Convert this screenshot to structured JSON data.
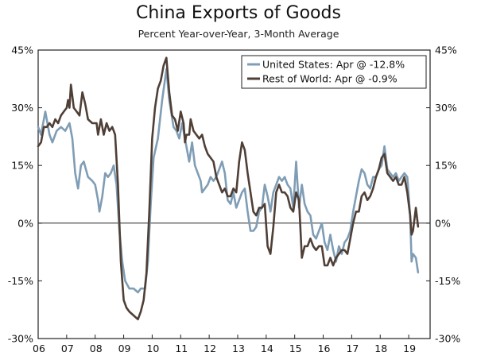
{
  "chart_data": {
    "type": "line",
    "title": "China Exports of Goods",
    "subtitle": "Percent Year-over-Year, 3-Month Average",
    "ylim": [
      -30,
      45
    ],
    "yticks": [
      -30,
      -15,
      0,
      15,
      30,
      45
    ],
    "ytick_labels": [
      "-30%",
      "-15%",
      "0%",
      "15%",
      "30%",
      "45%"
    ],
    "xlim": [
      2006.0,
      2019.75
    ],
    "xticks": [
      2006,
      2007,
      2008,
      2009,
      2010,
      2011,
      2012,
      2013,
      2014,
      2015,
      2016,
      2017,
      2018,
      2019
    ],
    "xtick_labels": [
      "06",
      "07",
      "08",
      "09",
      "10",
      "11",
      "12",
      "13",
      "14",
      "15",
      "16",
      "17",
      "18",
      "19"
    ],
    "grid": false,
    "legend_position": "top-right",
    "series": [
      {
        "name": "United States: Apr @ -12.8%",
        "color": "#7f9db5",
        "points": [
          [
            2006.0,
            25
          ],
          [
            2006.1,
            23
          ],
          [
            2006.25,
            29
          ],
          [
            2006.4,
            23
          ],
          [
            2006.5,
            21
          ],
          [
            2006.65,
            24
          ],
          [
            2006.8,
            25
          ],
          [
            2006.95,
            24
          ],
          [
            2007.1,
            26
          ],
          [
            2007.2,
            22
          ],
          [
            2007.3,
            13
          ],
          [
            2007.4,
            9
          ],
          [
            2007.5,
            15
          ],
          [
            2007.6,
            16
          ],
          [
            2007.75,
            12
          ],
          [
            2007.9,
            11
          ],
          [
            2008.0,
            10
          ],
          [
            2008.1,
            6
          ],
          [
            2008.15,
            3
          ],
          [
            2008.25,
            7
          ],
          [
            2008.35,
            13
          ],
          [
            2008.45,
            12
          ],
          [
            2008.55,
            13
          ],
          [
            2008.65,
            15
          ],
          [
            2008.75,
            10
          ],
          [
            2008.85,
            -2
          ],
          [
            2008.95,
            -10
          ],
          [
            2009.05,
            -15
          ],
          [
            2009.2,
            -17
          ],
          [
            2009.35,
            -17
          ],
          [
            2009.5,
            -18
          ],
          [
            2009.6,
            -17
          ],
          [
            2009.75,
            -17
          ],
          [
            2009.85,
            -10
          ],
          [
            2009.95,
            5
          ],
          [
            2010.05,
            17
          ],
          [
            2010.2,
            22
          ],
          [
            2010.35,
            32
          ],
          [
            2010.5,
            40
          ],
          [
            2010.6,
            32
          ],
          [
            2010.75,
            25
          ],
          [
            2010.85,
            24
          ],
          [
            2010.95,
            22
          ],
          [
            2011.05,
            26
          ],
          [
            2011.2,
            20
          ],
          [
            2011.3,
            16
          ],
          [
            2011.4,
            21
          ],
          [
            2011.5,
            15
          ],
          [
            2011.6,
            13
          ],
          [
            2011.7,
            11
          ],
          [
            2011.75,
            8
          ],
          [
            2011.85,
            9
          ],
          [
            2011.95,
            10
          ],
          [
            2012.05,
            12
          ],
          [
            2012.15,
            11
          ],
          [
            2012.25,
            12
          ],
          [
            2012.35,
            14
          ],
          [
            2012.45,
            16
          ],
          [
            2012.55,
            13
          ],
          [
            2012.65,
            6
          ],
          [
            2012.75,
            5
          ],
          [
            2012.85,
            8
          ],
          [
            2012.95,
            4
          ],
          [
            2013.05,
            6
          ],
          [
            2013.15,
            8
          ],
          [
            2013.25,
            9
          ],
          [
            2013.35,
            3
          ],
          [
            2013.45,
            -2
          ],
          [
            2013.55,
            -2
          ],
          [
            2013.65,
            -1
          ],
          [
            2013.75,
            3
          ],
          [
            2013.85,
            4
          ],
          [
            2013.95,
            10
          ],
          [
            2014.05,
            7
          ],
          [
            2014.15,
            3
          ],
          [
            2014.25,
            8
          ],
          [
            2014.35,
            10
          ],
          [
            2014.45,
            12
          ],
          [
            2014.55,
            11
          ],
          [
            2014.65,
            12
          ],
          [
            2014.75,
            10
          ],
          [
            2014.85,
            9
          ],
          [
            2014.95,
            4
          ],
          [
            2015.05,
            16
          ],
          [
            2015.15,
            4
          ],
          [
            2015.25,
            10
          ],
          [
            2015.35,
            5
          ],
          [
            2015.45,
            3
          ],
          [
            2015.55,
            2
          ],
          [
            2015.65,
            -3
          ],
          [
            2015.75,
            -4
          ],
          [
            2015.85,
            -2
          ],
          [
            2015.95,
            0
          ],
          [
            2016.05,
            -5
          ],
          [
            2016.15,
            -7
          ],
          [
            2016.25,
            -3
          ],
          [
            2016.35,
            -7
          ],
          [
            2016.45,
            -10
          ],
          [
            2016.55,
            -6
          ],
          [
            2016.65,
            -8
          ],
          [
            2016.75,
            -5
          ],
          [
            2016.85,
            -4
          ],
          [
            2016.95,
            -2
          ],
          [
            2017.05,
            3
          ],
          [
            2017.15,
            7
          ],
          [
            2017.25,
            11
          ],
          [
            2017.35,
            14
          ],
          [
            2017.45,
            13
          ],
          [
            2017.55,
            10
          ],
          [
            2017.65,
            9
          ],
          [
            2017.75,
            12
          ],
          [
            2017.85,
            12
          ],
          [
            2017.95,
            14
          ],
          [
            2018.05,
            15
          ],
          [
            2018.15,
            20
          ],
          [
            2018.25,
            14
          ],
          [
            2018.35,
            13
          ],
          [
            2018.45,
            12
          ],
          [
            2018.55,
            13
          ],
          [
            2018.65,
            11
          ],
          [
            2018.75,
            12
          ],
          [
            2018.85,
            13
          ],
          [
            2018.95,
            12
          ],
          [
            2019.05,
            2
          ],
          [
            2019.1,
            -10
          ],
          [
            2019.15,
            -8
          ],
          [
            2019.25,
            -9
          ],
          [
            2019.33,
            -12.8
          ]
        ]
      },
      {
        "name": "Rest of World: Apr @ -0.9%",
        "color": "#4f3f36",
        "points": [
          [
            2006.0,
            20
          ],
          [
            2006.1,
            21
          ],
          [
            2006.2,
            25
          ],
          [
            2006.3,
            25
          ],
          [
            2006.4,
            26
          ],
          [
            2006.5,
            25
          ],
          [
            2006.6,
            27
          ],
          [
            2006.7,
            26
          ],
          [
            2006.8,
            28
          ],
          [
            2006.9,
            29
          ],
          [
            2007.0,
            30
          ],
          [
            2007.05,
            32
          ],
          [
            2007.1,
            30
          ],
          [
            2007.15,
            36
          ],
          [
            2007.25,
            30
          ],
          [
            2007.35,
            29
          ],
          [
            2007.45,
            28
          ],
          [
            2007.55,
            34
          ],
          [
            2007.65,
            31
          ],
          [
            2007.75,
            27
          ],
          [
            2007.9,
            26
          ],
          [
            2008.05,
            26
          ],
          [
            2008.1,
            23
          ],
          [
            2008.2,
            27
          ],
          [
            2008.3,
            23
          ],
          [
            2008.4,
            26
          ],
          [
            2008.5,
            24
          ],
          [
            2008.6,
            25
          ],
          [
            2008.7,
            23
          ],
          [
            2008.8,
            10
          ],
          [
            2008.9,
            -10
          ],
          [
            2009.0,
            -20
          ],
          [
            2009.1,
            -22
          ],
          [
            2009.2,
            -23
          ],
          [
            2009.35,
            -24
          ],
          [
            2009.5,
            -25
          ],
          [
            2009.6,
            -23
          ],
          [
            2009.7,
            -20
          ],
          [
            2009.8,
            -13
          ],
          [
            2009.9,
            3
          ],
          [
            2010.0,
            22
          ],
          [
            2010.1,
            30
          ],
          [
            2010.2,
            35
          ],
          [
            2010.3,
            37
          ],
          [
            2010.4,
            41
          ],
          [
            2010.5,
            43
          ],
          [
            2010.6,
            34
          ],
          [
            2010.7,
            28
          ],
          [
            2010.8,
            27
          ],
          [
            2010.9,
            24
          ],
          [
            2011.0,
            29
          ],
          [
            2011.1,
            26
          ],
          [
            2011.15,
            21
          ],
          [
            2011.2,
            23
          ],
          [
            2011.3,
            23
          ],
          [
            2011.35,
            27
          ],
          [
            2011.45,
            24
          ],
          [
            2011.55,
            23
          ],
          [
            2011.65,
            22
          ],
          [
            2011.75,
            23
          ],
          [
            2011.85,
            20
          ],
          [
            2011.95,
            18
          ],
          [
            2012.05,
            17
          ],
          [
            2012.15,
            16
          ],
          [
            2012.25,
            12
          ],
          [
            2012.35,
            10
          ],
          [
            2012.45,
            8
          ],
          [
            2012.55,
            9
          ],
          [
            2012.65,
            7
          ],
          [
            2012.75,
            7
          ],
          [
            2012.85,
            9
          ],
          [
            2012.95,
            8
          ],
          [
            2013.05,
            16
          ],
          [
            2013.15,
            21
          ],
          [
            2013.25,
            19
          ],
          [
            2013.35,
            13
          ],
          [
            2013.45,
            8
          ],
          [
            2013.55,
            3
          ],
          [
            2013.65,
            2
          ],
          [
            2013.75,
            4
          ],
          [
            2013.85,
            4
          ],
          [
            2013.95,
            5
          ],
          [
            2014.05,
            -6
          ],
          [
            2014.15,
            -8
          ],
          [
            2014.25,
            -1
          ],
          [
            2014.35,
            8
          ],
          [
            2014.45,
            10
          ],
          [
            2014.55,
            8
          ],
          [
            2014.65,
            8
          ],
          [
            2014.75,
            7
          ],
          [
            2014.85,
            4
          ],
          [
            2014.95,
            3
          ],
          [
            2015.05,
            8
          ],
          [
            2015.15,
            6
          ],
          [
            2015.25,
            -9
          ],
          [
            2015.35,
            -6
          ],
          [
            2015.45,
            -6
          ],
          [
            2015.55,
            -4
          ],
          [
            2015.65,
            -6
          ],
          [
            2015.75,
            -7
          ],
          [
            2015.85,
            -6
          ],
          [
            2015.95,
            -6
          ],
          [
            2016.05,
            -11
          ],
          [
            2016.15,
            -11
          ],
          [
            2016.25,
            -9
          ],
          [
            2016.35,
            -11
          ],
          [
            2016.45,
            -9
          ],
          [
            2016.55,
            -8
          ],
          [
            2016.65,
            -7
          ],
          [
            2016.75,
            -7
          ],
          [
            2016.85,
            -8
          ],
          [
            2016.95,
            -4
          ],
          [
            2017.05,
            0
          ],
          [
            2017.15,
            3
          ],
          [
            2017.25,
            3
          ],
          [
            2017.35,
            7
          ],
          [
            2017.45,
            8
          ],
          [
            2017.55,
            6
          ],
          [
            2017.65,
            7
          ],
          [
            2017.75,
            9
          ],
          [
            2017.85,
            12
          ],
          [
            2017.95,
            14
          ],
          [
            2018.05,
            17
          ],
          [
            2018.15,
            18
          ],
          [
            2018.25,
            13
          ],
          [
            2018.35,
            12
          ],
          [
            2018.45,
            11
          ],
          [
            2018.55,
            12
          ],
          [
            2018.65,
            10
          ],
          [
            2018.75,
            10
          ],
          [
            2018.85,
            12
          ],
          [
            2018.95,
            8
          ],
          [
            2019.05,
            2
          ],
          [
            2019.1,
            -3
          ],
          [
            2019.15,
            -2
          ],
          [
            2019.25,
            4
          ],
          [
            2019.33,
            -0.9
          ]
        ]
      }
    ]
  }
}
